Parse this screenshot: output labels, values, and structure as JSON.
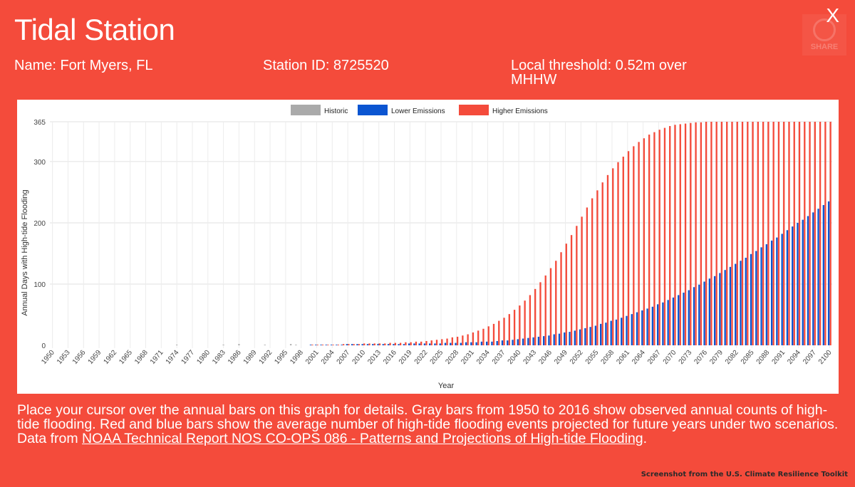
{
  "header": {
    "title": "Tidal Station",
    "close_label": "X",
    "share_label": "SHARE",
    "name": "Name: Fort Myers, FL",
    "station_id": "Station ID: 8725520",
    "threshold": "Local threshold: 0.52m over MHHW"
  },
  "description": {
    "text": "Place your cursor over the annual bars on this graph for details. Gray bars from 1950 to 2016 show observed annual counts of high-tide flooding. Red and blue bars show the average number of high-tide flooding events projected for future years under two scenarios. Data from ",
    "link_text": "NOAA Technical Report NOS CO-OPS 086 - Patterns and Projections of High-tide Flooding",
    "suffix": "."
  },
  "credit": "Screenshot from the U.S. Climate Resilience Toolkit",
  "colors": {
    "historic": "#aaaaaa",
    "lower": "#0b55d1",
    "higher": "#f44b3b",
    "background": "#f44b3b"
  },
  "chart_data": {
    "type": "bar",
    "title": "",
    "xlabel": "Year",
    "ylabel": "Annual Days with High-tide Flooding",
    "ylim": [
      0,
      365
    ],
    "yticks": [
      0,
      100,
      200,
      300,
      365
    ],
    "grid": true,
    "legend_position": "top-center",
    "x_start": 1950,
    "x_end": 2100,
    "x_tick_labels": [
      "1950",
      "1953",
      "1956",
      "1959",
      "1962",
      "1965",
      "1968",
      "1971",
      "1974",
      "1977",
      "1980",
      "1983",
      "1986",
      "1989",
      "1992",
      "1995",
      "1998",
      "2001",
      "2004",
      "2007",
      "2010",
      "2013",
      "2016",
      "2019",
      "2022",
      "2025",
      "2028",
      "2031",
      "2034",
      "2037",
      "2040",
      "2043",
      "2046",
      "2049",
      "2052",
      "2055",
      "2058",
      "2061",
      "2064",
      "2067",
      "2070",
      "2073",
      "2076",
      "2079",
      "2082",
      "2085",
      "2088",
      "2091",
      "2094",
      "2097",
      "2100"
    ],
    "series": [
      {
        "name": "Historic",
        "x_start": 1950,
        "values": [
          0,
          0,
          0,
          0,
          0,
          0,
          0,
          0,
          0,
          0,
          0,
          0,
          0,
          0,
          0,
          0,
          0,
          0,
          0,
          0,
          0,
          0,
          0,
          0,
          1,
          0,
          0,
          0,
          0,
          0,
          0,
          0,
          0,
          1,
          0,
          0,
          2,
          0,
          0,
          0,
          0,
          1,
          0,
          0,
          0,
          0,
          2,
          1,
          0,
          0,
          1,
          0,
          1,
          0,
          0,
          0,
          1,
          2,
          1,
          1,
          0,
          1,
          1,
          3,
          1,
          2,
          2
        ]
      },
      {
        "name": "Lower Emissions",
        "x_start": 2000,
        "values": [
          1,
          1,
          1,
          1,
          1,
          1,
          1,
          2,
          2,
          2,
          2,
          2,
          2,
          2,
          2,
          2,
          2,
          2,
          2,
          3,
          3,
          3,
          3,
          3,
          3,
          3,
          4,
          4,
          4,
          4,
          5,
          5,
          5,
          6,
          6,
          6,
          7,
          8,
          8,
          9,
          10,
          11,
          12,
          13,
          14,
          15,
          16,
          18,
          19,
          21,
          22,
          24,
          26,
          28,
          30,
          32,
          35,
          37,
          40,
          42,
          45,
          48,
          51,
          54,
          57,
          60,
          63,
          67,
          70,
          74,
          78,
          82,
          86,
          90,
          95,
          99,
          104,
          109,
          113,
          118,
          123,
          128,
          133,
          138,
          143,
          149,
          154,
          160,
          165,
          171,
          176,
          182,
          188,
          194,
          200,
          205,
          211,
          217,
          223,
          229,
          235
        ]
      },
      {
        "name": "Higher Emissions",
        "x_start": 2000,
        "values": [
          1,
          1,
          1,
          1,
          1,
          1,
          2,
          2,
          2,
          2,
          3,
          3,
          3,
          3,
          3,
          4,
          4,
          4,
          5,
          5,
          6,
          6,
          7,
          8,
          9,
          10,
          11,
          13,
          14,
          16,
          18,
          21,
          24,
          27,
          31,
          35,
          40,
          45,
          51,
          58,
          65,
          73,
          82,
          92,
          103,
          114,
          126,
          138,
          152,
          166,
          180,
          195,
          210,
          225,
          240,
          253,
          266,
          278,
          289,
          299,
          308,
          317,
          325,
          332,
          338,
          344,
          348,
          352,
          355,
          358,
          360,
          361,
          362,
          363,
          364,
          364,
          365,
          365,
          365,
          365,
          365,
          365,
          365,
          365,
          365,
          365,
          365,
          365,
          365,
          365,
          365,
          365,
          365,
          365,
          365,
          365,
          365,
          365,
          365,
          365,
          365
        ]
      }
    ]
  }
}
